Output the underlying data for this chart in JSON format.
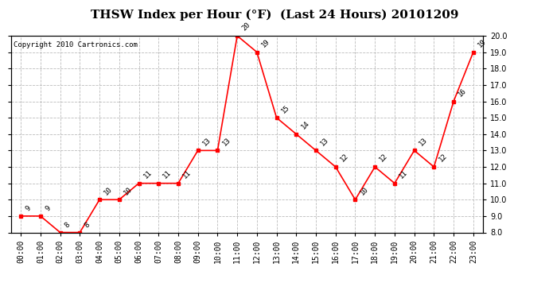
{
  "title": "THSW Index per Hour (°F)  (Last 24 Hours) 20101209",
  "copyright": "Copyright 2010 Cartronics.com",
  "hours": [
    "00:00",
    "01:00",
    "02:00",
    "03:00",
    "04:00",
    "05:00",
    "06:00",
    "07:00",
    "08:00",
    "09:00",
    "10:00",
    "11:00",
    "12:00",
    "13:00",
    "14:00",
    "15:00",
    "16:00",
    "17:00",
    "18:00",
    "19:00",
    "20:00",
    "21:00",
    "22:00",
    "23:00"
  ],
  "values": [
    9,
    9,
    8,
    8,
    10,
    10,
    11,
    11,
    11,
    13,
    13,
    20,
    19,
    15,
    14,
    13,
    12,
    10,
    12,
    11,
    13,
    12,
    16,
    19
  ],
  "labels": [
    "9",
    "9",
    "8",
    "8",
    "10",
    "10",
    "11",
    "11",
    "11",
    "13",
    "13",
    "20",
    "19",
    "15",
    "14",
    "13",
    "12",
    "10",
    "12",
    "11",
    "13",
    "12",
    "16",
    "19"
  ],
  "line_color": "#ff0000",
  "marker_color": "#ff0000",
  "bg_color": "#ffffff",
  "grid_color": "#bbbbbb",
  "ylim": [
    8.0,
    20.0
  ],
  "yticks": [
    8.0,
    9.0,
    10.0,
    11.0,
    12.0,
    13.0,
    14.0,
    15.0,
    16.0,
    17.0,
    18.0,
    19.0,
    20.0
  ],
  "title_fontsize": 11,
  "label_fontsize": 6.5,
  "copyright_fontsize": 6.5,
  "tick_fontsize": 7
}
